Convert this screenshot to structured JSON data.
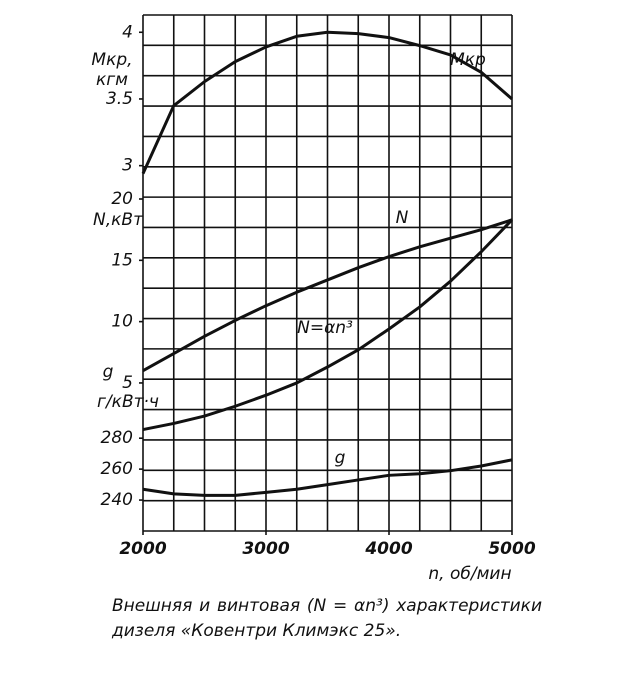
{
  "chart_data": [
    {
      "type": "line",
      "ylabel": [
        "Mкр,",
        "кгм"
      ],
      "x": [
        2000,
        2250,
        2500,
        2750,
        3000,
        3250,
        3500,
        3750,
        4000,
        4250,
        4500,
        4750,
        5000
      ],
      "ylim": [
        2.75,
        4.125
      ],
      "yticks": [
        3,
        3.5,
        4
      ],
      "series": [
        {
          "name": "Mкр",
          "color": "#111111",
          "values": [
            2.94,
            3.45,
            3.63,
            3.78,
            3.89,
            3.97,
            4.0,
            3.99,
            3.96,
            3.9,
            3.83,
            3.7,
            3.5
          ]
        }
      ]
    },
    {
      "type": "line",
      "ylabel": [
        "N,кВт"
      ],
      "x": [
        2000,
        2250,
        2500,
        2750,
        3000,
        3250,
        3500,
        3750,
        4000,
        4250,
        4500,
        4750,
        5000
      ],
      "ylim": [
        1,
        20
      ],
      "yticks": [
        5,
        10,
        15,
        20
      ],
      "series": [
        {
          "name": "N",
          "color": "#111111",
          "values": [
            6.0,
            7.4,
            8.8,
            10.1,
            11.3,
            12.4,
            13.4,
            14.4,
            15.3,
            16.1,
            16.8,
            17.5,
            18.3
          ]
        },
        {
          "name": "N=αn³",
          "color": "#111111",
          "values": [
            1.2,
            1.7,
            2.3,
            3.1,
            4.0,
            5.0,
            6.3,
            7.7,
            9.4,
            11.2,
            13.3,
            15.7,
            18.3
          ]
        }
      ]
    },
    {
      "type": "line",
      "ylabel": [
        "g",
        "г/кВт·ч"
      ],
      "x": [
        2000,
        2250,
        2500,
        2750,
        3000,
        3250,
        3500,
        3750,
        4000,
        4250,
        4500,
        4750,
        5000
      ],
      "ylim": [
        220,
        284
      ],
      "yticks": [
        240,
        260,
        280
      ],
      "xlim": [
        2000,
        5000
      ],
      "xticks": [
        2000,
        3000,
        4000,
        5000
      ],
      "xlabel": "n, об/мин",
      "series": [
        {
          "name": "g",
          "color": "#111111",
          "values": [
            247,
            244,
            243,
            243,
            245,
            247,
            250,
            253,
            256,
            257,
            259,
            262,
            266
          ]
        }
      ]
    }
  ],
  "caption": "Внешняя и винтовая (N = αn³) характеристики дизеля «Ковентри Климэкс 25»."
}
